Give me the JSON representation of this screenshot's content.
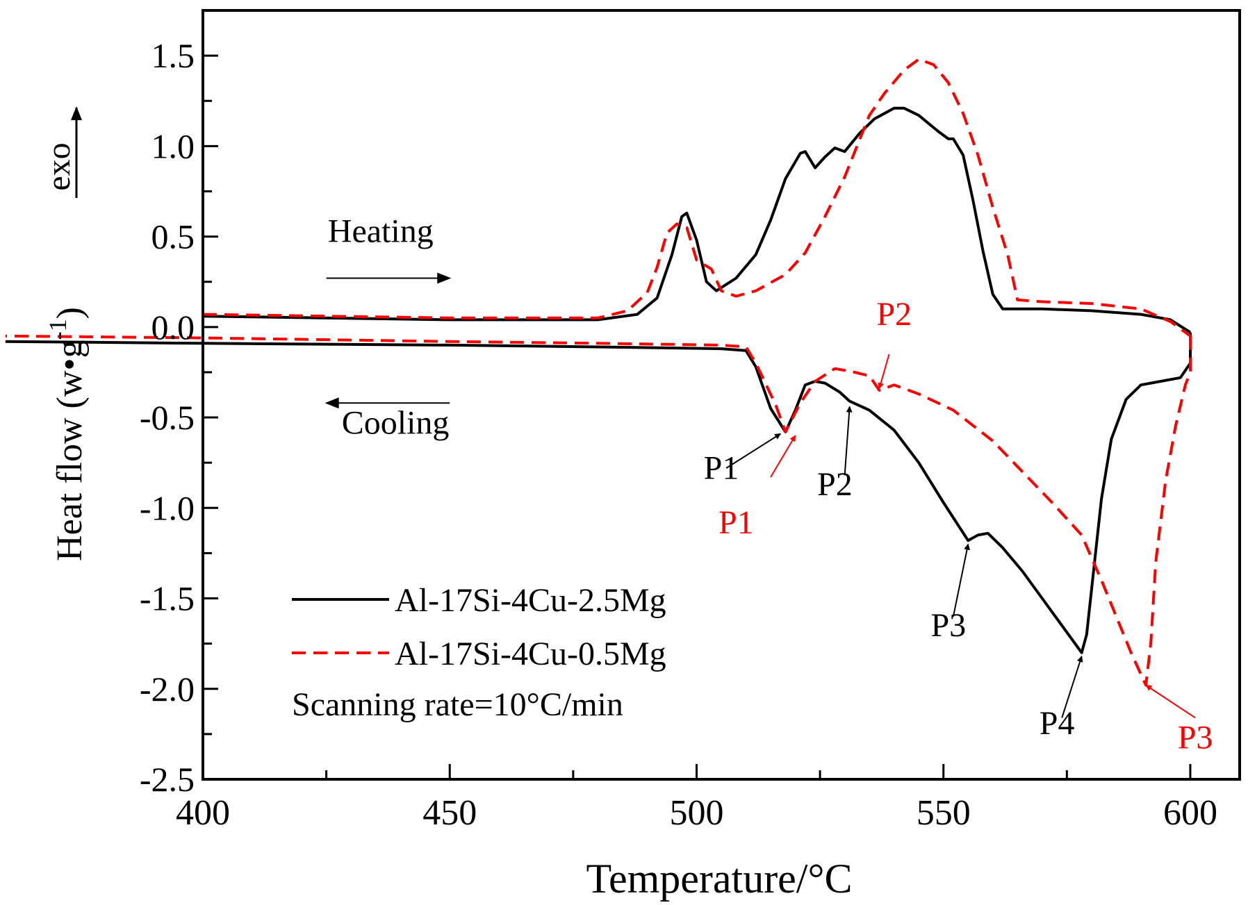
{
  "chart_data": {
    "type": "line",
    "title": "",
    "xlabel": "Temperature/°C",
    "ylabel": "Heat flow (w•g",
    "ylabel_sup": "-1",
    "ylabel_close": ")",
    "exo_label": "exo",
    "xlim": [
      400,
      610
    ],
    "ylim": [
      -2.5,
      1.75
    ],
    "xticks": [
      400,
      450,
      500,
      550,
      600
    ],
    "xtick_labels": [
      "400",
      "450",
      "500",
      "550",
      "600"
    ],
    "yticks": [
      -2.5,
      -2.0,
      -1.5,
      -1.0,
      -0.5,
      0.0,
      0.5,
      1.0,
      1.5
    ],
    "ytick_labels": [
      "-2.5",
      "-2.0",
      "-1.5",
      "-1.0",
      "-0.5",
      "0.0",
      "0.5",
      "1.0",
      "1.5"
    ],
    "grid": false,
    "legend_position": "bottom-left",
    "colors": {
      "black": "#000000",
      "red": "#ff0000"
    },
    "series": [
      {
        "name": "Al-17Si-4Cu-2.5Mg",
        "segment": "heating",
        "color": "#000000",
        "dash": false,
        "points": [
          [
            400,
            0.06
          ],
          [
            450,
            0.04
          ],
          [
            480,
            0.04
          ],
          [
            488,
            0.07
          ],
          [
            492,
            0.16
          ],
          [
            495,
            0.4
          ],
          [
            497,
            0.61
          ],
          [
            498,
            0.63
          ],
          [
            500,
            0.48
          ],
          [
            502,
            0.25
          ],
          [
            504,
            0.2
          ],
          [
            508,
            0.27
          ],
          [
            512,
            0.4
          ],
          [
            515,
            0.59
          ],
          [
            518,
            0.82
          ],
          [
            521,
            0.96
          ],
          [
            522,
            0.97
          ],
          [
            524,
            0.88
          ],
          [
            526,
            0.94
          ],
          [
            528,
            0.99
          ],
          [
            530,
            0.97
          ],
          [
            533,
            1.07
          ],
          [
            536,
            1.15
          ],
          [
            540,
            1.21
          ],
          [
            542,
            1.21
          ],
          [
            545,
            1.17
          ],
          [
            549,
            1.08
          ],
          [
            551,
            1.04
          ],
          [
            552,
            1.04
          ],
          [
            554,
            0.95
          ],
          [
            556,
            0.7
          ],
          [
            558,
            0.42
          ],
          [
            560,
            0.18
          ],
          [
            562,
            0.1
          ],
          [
            570,
            0.1
          ],
          [
            580,
            0.09
          ],
          [
            590,
            0.07
          ],
          [
            596,
            0.04
          ],
          [
            600,
            -0.03
          ]
        ]
      },
      {
        "name": "Al-17Si-4Cu-2.5Mg",
        "segment": "cooling",
        "color": "#000000",
        "dash": false,
        "points": [
          [
            600,
            -0.03
          ],
          [
            600,
            -0.2
          ],
          [
            598,
            -0.28
          ],
          [
            594,
            -0.3
          ],
          [
            590,
            -0.32
          ],
          [
            587,
            -0.4
          ],
          [
            584,
            -0.62
          ],
          [
            582,
            -0.95
          ],
          [
            580,
            -1.45
          ],
          [
            579,
            -1.7
          ],
          [
            578,
            -1.8
          ],
          [
            574,
            -1.65
          ],
          [
            570,
            -1.5
          ],
          [
            566,
            -1.35
          ],
          [
            562,
            -1.22
          ],
          [
            559,
            -1.14
          ],
          [
            557,
            -1.15
          ],
          [
            555,
            -1.18
          ],
          [
            550,
            -0.97
          ],
          [
            545,
            -0.75
          ],
          [
            540,
            -0.57
          ],
          [
            535,
            -0.46
          ],
          [
            531,
            -0.41
          ],
          [
            529,
            -0.36
          ],
          [
            526,
            -0.31
          ],
          [
            524,
            -0.3
          ],
          [
            522,
            -0.32
          ],
          [
            520,
            -0.46
          ],
          [
            518,
            -0.58
          ],
          [
            515,
            -0.45
          ],
          [
            512,
            -0.22
          ],
          [
            510,
            -0.13
          ],
          [
            505,
            -0.12
          ],
          [
            480,
            -0.11
          ],
          [
            450,
            -0.1
          ],
          [
            400,
            -0.09
          ],
          [
            360,
            -0.08
          ]
        ]
      },
      {
        "name": "Al-17Si-4Cu-0.5Mg",
        "segment": "heating",
        "color": "#ff0000",
        "dash": true,
        "points": [
          [
            400,
            0.07
          ],
          [
            450,
            0.05
          ],
          [
            480,
            0.05
          ],
          [
            486,
            0.09
          ],
          [
            490,
            0.19
          ],
          [
            492,
            0.33
          ],
          [
            494,
            0.52
          ],
          [
            496,
            0.57
          ],
          [
            498,
            0.55
          ],
          [
            500,
            0.37
          ],
          [
            503,
            0.32
          ],
          [
            505,
            0.2
          ],
          [
            508,
            0.17
          ],
          [
            512,
            0.2
          ],
          [
            518,
            0.29
          ],
          [
            522,
            0.41
          ],
          [
            526,
            0.61
          ],
          [
            530,
            0.83
          ],
          [
            535,
            1.17
          ],
          [
            538,
            1.29
          ],
          [
            542,
            1.42
          ],
          [
            545,
            1.48
          ],
          [
            548,
            1.45
          ],
          [
            551,
            1.35
          ],
          [
            554,
            1.18
          ],
          [
            557,
            0.95
          ],
          [
            560,
            0.66
          ],
          [
            563,
            0.4
          ],
          [
            565,
            0.15
          ],
          [
            570,
            0.14
          ],
          [
            580,
            0.13
          ],
          [
            590,
            0.1
          ],
          [
            596,
            0.03
          ],
          [
            600,
            -0.05
          ]
        ]
      },
      {
        "name": "Al-17Si-4Cu-0.5Mg",
        "segment": "cooling",
        "color": "#ff0000",
        "dash": true,
        "points": [
          [
            600,
            -0.05
          ],
          [
            600,
            -0.25
          ],
          [
            599,
            -0.32
          ],
          [
            597,
            -0.55
          ],
          [
            595,
            -0.85
          ],
          [
            593,
            -1.3
          ],
          [
            592,
            -1.75
          ],
          [
            591,
            -1.98
          ],
          [
            588,
            -1.8
          ],
          [
            585,
            -1.6
          ],
          [
            582,
            -1.4
          ],
          [
            578,
            -1.15
          ],
          [
            572,
            -0.97
          ],
          [
            566,
            -0.8
          ],
          [
            560,
            -0.63
          ],
          [
            552,
            -0.46
          ],
          [
            545,
            -0.37
          ],
          [
            540,
            -0.32
          ],
          [
            537,
            -0.35
          ],
          [
            535,
            -0.27
          ],
          [
            532,
            -0.25
          ],
          [
            528,
            -0.23
          ],
          [
            524,
            -0.3
          ],
          [
            521,
            -0.42
          ],
          [
            518,
            -0.58
          ],
          [
            516,
            -0.43
          ],
          [
            512,
            -0.2
          ],
          [
            510,
            -0.11
          ],
          [
            505,
            -0.1
          ],
          [
            480,
            -0.09
          ],
          [
            450,
            -0.08
          ],
          [
            400,
            -0.06
          ],
          [
            360,
            -0.05
          ]
        ]
      }
    ],
    "legend": [
      {
        "label": "Al-17Si-4Cu-2.5Mg",
        "color": "#000000",
        "dash": false
      },
      {
        "label": "Al-17Si-4Cu-0.5Mg",
        "color": "#ff0000",
        "dash": true
      }
    ],
    "legend_note": "Scanning rate=10°C/min",
    "direction_labels": [
      {
        "text": "Heating",
        "tx": 436,
        "ty": 0.47,
        "from": [
          425,
          0.27
        ],
        "to": [
          450,
          0.27
        ]
      },
      {
        "text": "Cooling",
        "tx": 439,
        "ty": -0.59,
        "from": [
          450,
          -0.42
        ],
        "to": [
          425,
          -0.42
        ]
      }
    ],
    "annotations": [
      {
        "text": "P1",
        "color": "#000000",
        "tx": 505,
        "ty": -0.84,
        "from": [
          506,
          -0.78
        ],
        "to": [
          517,
          -0.59
        ]
      },
      {
        "text": "P2",
        "color": "#000000",
        "tx": 528,
        "ty": -0.93,
        "from": [
          530,
          -0.82
        ],
        "to": [
          531,
          -0.44
        ]
      },
      {
        "text": "P3",
        "color": "#000000",
        "tx": 551,
        "ty": -1.71,
        "from": [
          552,
          -1.6
        ],
        "to": [
          555,
          -1.2
        ]
      },
      {
        "text": "P4",
        "color": "#000000",
        "tx": 573,
        "ty": -2.25,
        "from": [
          574,
          -2.16
        ],
        "to": [
          578,
          -1.82
        ]
      },
      {
        "text": "P1",
        "color": "#ff0000",
        "tx": 508,
        "ty": -1.14,
        "from": [
          515,
          -0.83
        ],
        "to": [
          520,
          -0.6
        ]
      },
      {
        "text": "P2",
        "color": "#ff0000",
        "tx": 540,
        "ty": 0.01,
        "from": [
          539,
          -0.15
        ],
        "to": [
          537,
          -0.34
        ]
      },
      {
        "text": "P3",
        "color": "#ff0000",
        "tx": 601,
        "ty": -2.33,
        "from": [
          601,
          -2.16
        ],
        "to": [
          591,
          -1.98
        ]
      }
    ]
  }
}
